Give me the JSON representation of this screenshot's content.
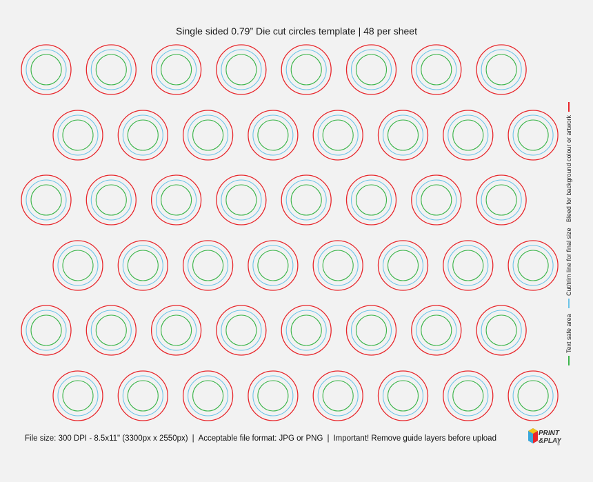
{
  "title": "Single sided 0.79” Die cut circles template | 48 per sheet",
  "legend": {
    "items": [
      {
        "label": "Text safe area",
        "color": "#3bb54a"
      },
      {
        "label": "Cut/trim line for final size",
        "color": "#6cc4e8"
      },
      {
        "label": "Bleed for background colour or artwork",
        "color": "#e8262b"
      }
    ]
  },
  "footer": {
    "file_size": "File size: 300 DPI - 8.5x11\" (3300px x 2550px)",
    "formats": "Acceptable file format: JPG or PNG",
    "important": "Important! Remove guide layers before upload",
    "separator": "|"
  },
  "logo": {
    "line1": "PRINT",
    "line2": "&PLAY",
    "mark": "®"
  },
  "colors": {
    "bleed": "#e8262b",
    "cut": "#6cc4e8",
    "safe": "#3bb54a",
    "background": "#f2f2f2"
  },
  "circles": {
    "rows": 6,
    "per_row": 8,
    "total": 48
  }
}
